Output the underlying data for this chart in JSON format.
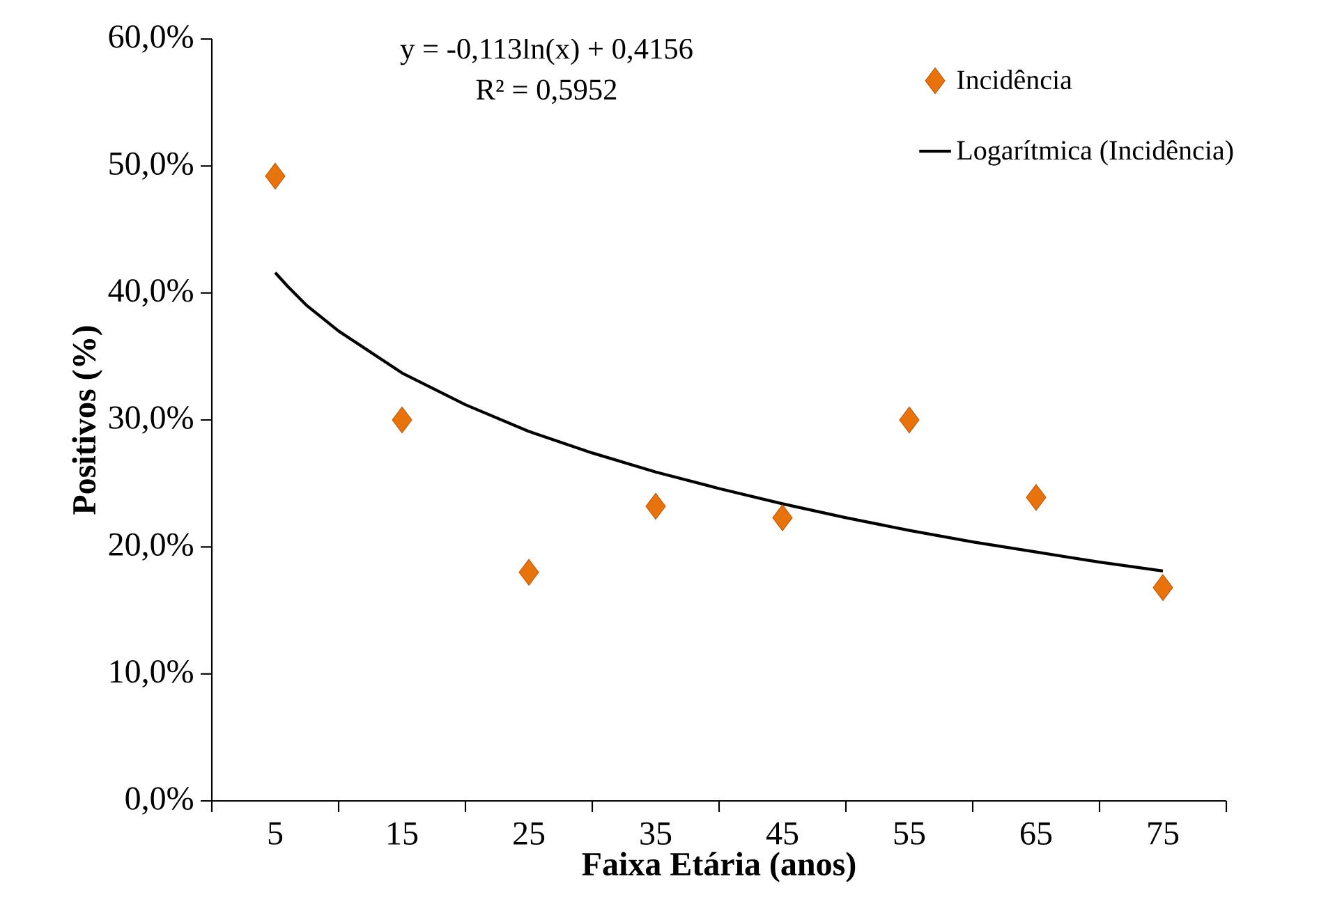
{
  "chart_data": {
    "type": "scatter",
    "xlabel": "Faixa Etária (anos)",
    "ylabel": "Positivos (%)",
    "annotations": [
      "y = -0,113ln(x) + 0,4156",
      "R² = 0,5952"
    ],
    "x": [
      5,
      15,
      25,
      35,
      45,
      55,
      65,
      75
    ],
    "series": [
      {
        "name": "Incidência",
        "marker": "diamond",
        "color": "#e8720c",
        "values": [
          49.2,
          30.0,
          18.0,
          23.2,
          22.3,
          30.0,
          23.9,
          16.8
        ]
      },
      {
        "name": "Logarítmica (Incidência)",
        "type": "line",
        "marker": "none",
        "color": "#000000",
        "x": [
          5,
          6,
          7.5,
          10,
          15,
          20,
          25,
          30,
          35,
          40,
          45,
          50,
          55,
          60,
          65,
          70,
          75
        ],
        "values": [
          41.6,
          40.5,
          39.0,
          37.0,
          33.7,
          31.2,
          29.1,
          27.4,
          25.9,
          24.6,
          23.4,
          22.3,
          21.3,
          20.4,
          19.6,
          18.8,
          18.1
        ]
      }
    ],
    "xlim": [
      0,
      80
    ],
    "xticks": [
      {
        "value": 0,
        "label": null
      },
      5,
      {
        "value": 10,
        "label": null
      },
      15,
      {
        "value": 20,
        "label": null
      },
      25,
      {
        "value": 30,
        "label": null
      },
      35,
      {
        "value": 40,
        "label": null
      },
      45,
      {
        "value": 50,
        "label": null
      },
      55,
      {
        "value": 60,
        "label": null
      },
      65,
      {
        "value": 70,
        "label": null
      },
      75,
      {
        "value": 80,
        "label": null
      }
    ],
    "ylim": [
      0,
      60
    ],
    "yticks": [
      {
        "value": 0,
        "label": "0,0%"
      },
      {
        "value": 10,
        "label": "10,0%"
      },
      {
        "value": 20,
        "label": "20,0%"
      },
      {
        "value": 30,
        "label": "30,0%"
      },
      {
        "value": 40,
        "label": "40,0%"
      },
      {
        "value": 50,
        "label": "50,0%"
      },
      {
        "value": 60,
        "label": "60,0%"
      }
    ],
    "grid": false,
    "legend": "top right"
  }
}
